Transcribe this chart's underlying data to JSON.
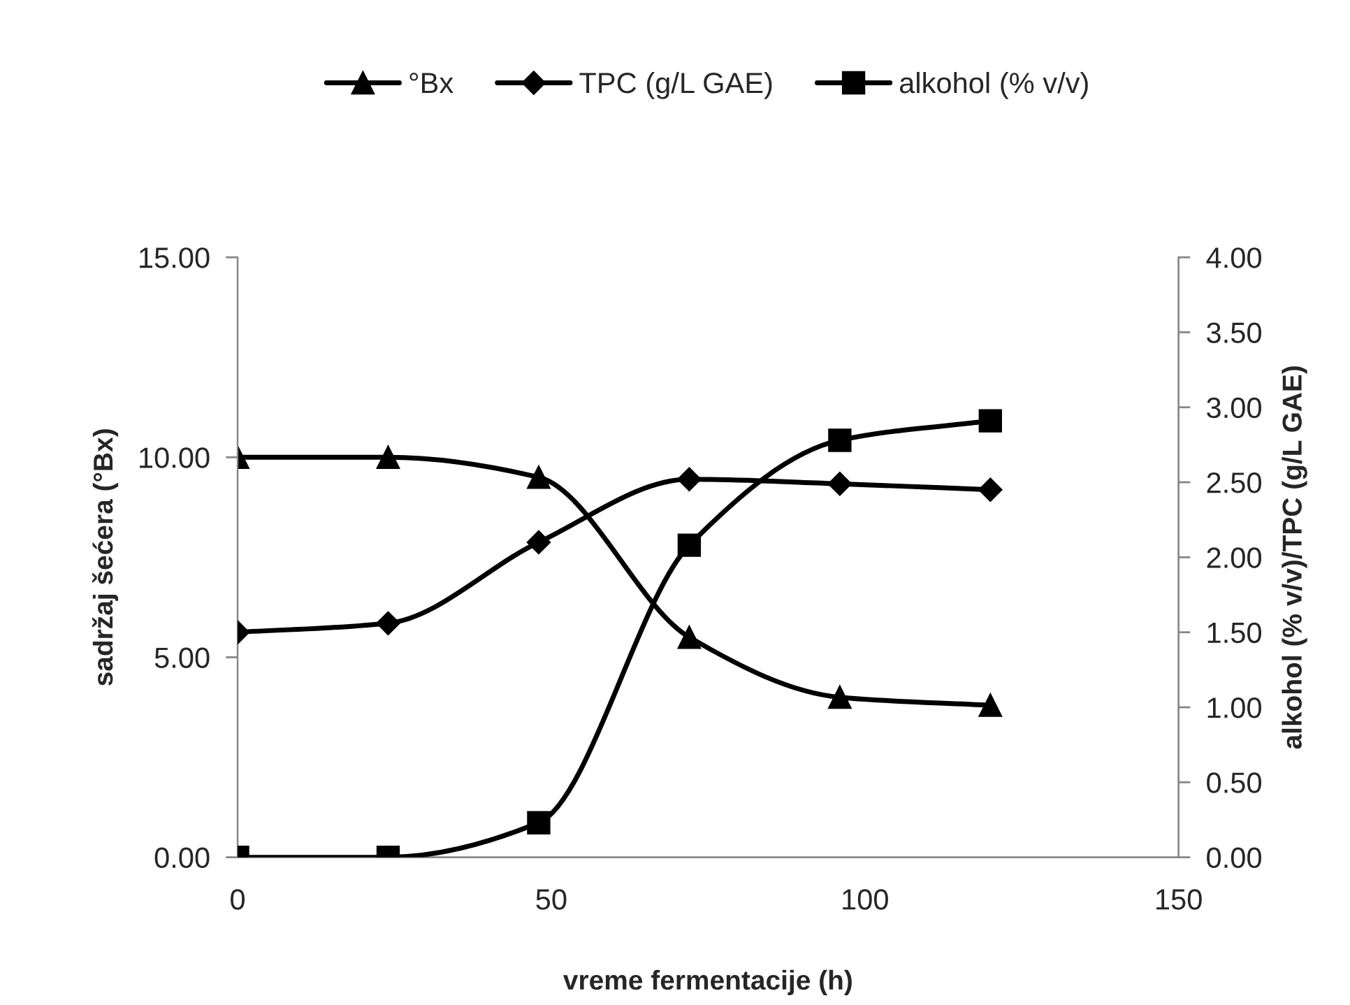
{
  "chart_data": {
    "type": "line",
    "xlabel": "vreme fermentacije (h)",
    "ylabel": "sadržaj šećera (°Bx)",
    "y2label": "alkohol (% v/v)/TPC (g/L GAE)",
    "x": [
      0,
      24,
      48,
      72,
      96,
      120
    ],
    "series": [
      {
        "name": "°Bx",
        "color": "#000000",
        "marker": "triangle",
        "values": [
          10.0,
          10.0,
          9.5,
          5.5,
          4.0,
          3.8
        ]
      },
      {
        "name": "TPC (g/L GAE)",
        "color": "#000000",
        "marker": "diamond",
        "axis": "y2",
        "values": [
          1.5,
          1.56,
          2.1,
          2.52,
          2.49,
          2.45
        ]
      },
      {
        "name": "alkohol (% v/v)",
        "color": "#000000",
        "marker": "square",
        "axis": "y2",
        "values": [
          0.0,
          0.0,
          0.23,
          2.08,
          2.78,
          2.91
        ]
      }
    ],
    "xlim": [
      0,
      150
    ],
    "xticks": [
      0,
      50,
      100,
      150
    ],
    "ylim": [
      0,
      15
    ],
    "yticks": [
      {
        "value": 0,
        "label": "0.00"
      },
      {
        "value": 5,
        "label": "5.00"
      },
      {
        "value": 10,
        "label": "10.00"
      },
      {
        "value": 15,
        "label": "15.00"
      }
    ],
    "y2lim": [
      0,
      4
    ],
    "y2ticks": [
      {
        "value": 0,
        "label": "0.00"
      },
      {
        "value": 0.5,
        "label": "0.50"
      },
      {
        "value": 1,
        "label": "1.00"
      },
      {
        "value": 1.5,
        "label": "1.50"
      },
      {
        "value": 2,
        "label": "2.00"
      },
      {
        "value": 2.5,
        "label": "2.50"
      },
      {
        "value": 3,
        "label": "3.00"
      },
      {
        "value": 3.5,
        "label": "3.50"
      },
      {
        "value": 4,
        "label": "4.00"
      }
    ],
    "grid": false,
    "legend": "top",
    "line_style": "solid"
  }
}
